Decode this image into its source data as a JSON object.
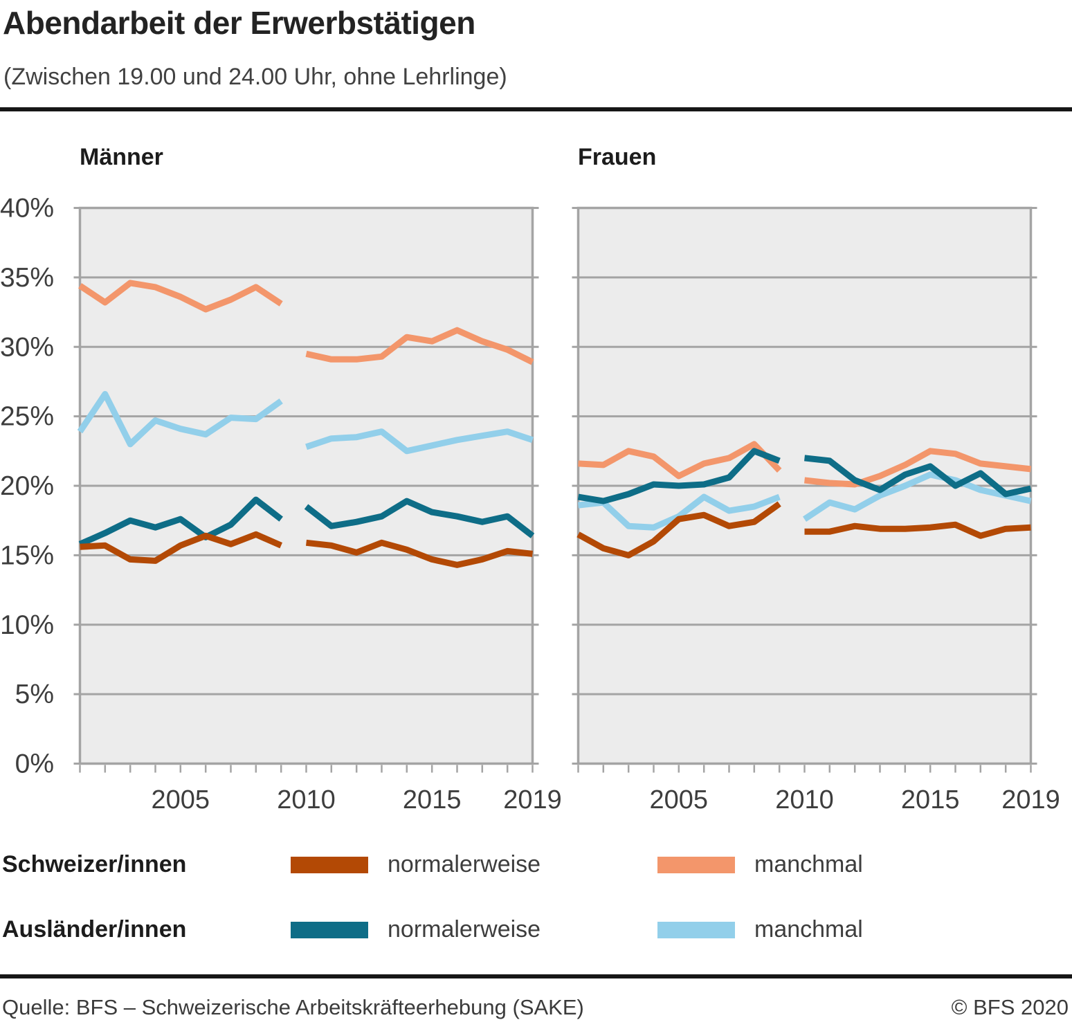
{
  "header": {
    "title": "Abendarbeit der Erwerbstätigen",
    "subtitle": "(Zwischen 19.00 und 24.00 Uhr, ohne Lehrlinge)"
  },
  "footer": {
    "source": "Quelle: BFS – Schweizerische Arbeitskräfteerhebung (SAKE)",
    "copyright": "© BFS 2020"
  },
  "colors": {
    "swiss_usually": "#b34905",
    "swiss_sometimes": "#f3966b",
    "foreign_usually": "#0e6d87",
    "foreign_sometimes": "#92cfea",
    "grid": "#a4a4a4",
    "plot_bg": "#ececec",
    "axis_text": "#3d3d3d"
  },
  "legend": {
    "rows": [
      {
        "group": "Schweizer/innen",
        "items": [
          {
            "label": "normalerweise",
            "color_key": "swiss_usually"
          },
          {
            "label": "manchmal",
            "color_key": "swiss_sometimes"
          }
        ]
      },
      {
        "group": "Ausländer/innen",
        "items": [
          {
            "label": "normalerweise",
            "color_key": "foreign_usually"
          },
          {
            "label": "manchmal",
            "color_key": "foreign_sometimes"
          }
        ]
      }
    ]
  },
  "chart_data": {
    "type": "line",
    "unit": "percent",
    "grid": true,
    "legend_position": "bottom",
    "ylim": [
      0,
      40
    ],
    "ytick_values": [
      0,
      5,
      10,
      15,
      20,
      25,
      30,
      35,
      40
    ],
    "ytick_labels": [
      "0%",
      "5%",
      "10%",
      "15%",
      "20%",
      "25%",
      "30%",
      "35%",
      "40%"
    ],
    "x_start": 2001,
    "x_end": 2019,
    "series_break_note": "data gap between 2009 and 2010",
    "xtick_years": [
      2005,
      2010,
      2015,
      2019
    ],
    "xtick_labels": [
      "2005",
      "2010",
      "2015",
      "2019"
    ],
    "panels": [
      {
        "title": "Männer",
        "series": [
          {
            "group": "Schweizer/innen",
            "label": "manchmal",
            "color_key": "swiss_sometimes",
            "segments": [
              {
                "start_year": 2001,
                "values": [
                  34.4,
                  33.2,
                  34.6,
                  34.3,
                  33.6,
                  32.7,
                  33.4,
                  34.3,
                  33.1
                ]
              },
              {
                "start_year": 2010,
                "values": [
                  29.5,
                  29.1,
                  29.1,
                  29.3,
                  30.7,
                  30.4,
                  31.2,
                  30.4,
                  29.8,
                  28.9
                ]
              }
            ]
          },
          {
            "group": "Ausländer/innen",
            "label": "manchmal",
            "color_key": "foreign_sometimes",
            "segments": [
              {
                "start_year": 2001,
                "values": [
                  23.9,
                  26.6,
                  23.0,
                  24.7,
                  24.1,
                  23.7,
                  24.9,
                  24.8,
                  26.1
                ]
              },
              {
                "start_year": 2010,
                "values": [
                  22.8,
                  23.4,
                  23.5,
                  23.9,
                  22.5,
                  22.9,
                  23.3,
                  23.6,
                  23.9,
                  23.3
                ]
              }
            ]
          },
          {
            "group": "Ausländer/innen",
            "label": "normalerweise",
            "color_key": "foreign_usually",
            "segments": [
              {
                "start_year": 2001,
                "values": [
                  15.8,
                  16.6,
                  17.5,
                  17.0,
                  17.6,
                  16.3,
                  17.2,
                  19.0,
                  17.6
                ]
              },
              {
                "start_year": 2010,
                "values": [
                  18.5,
                  17.1,
                  17.4,
                  17.8,
                  18.9,
                  18.1,
                  17.8,
                  17.4,
                  17.8,
                  16.4
                ]
              }
            ]
          },
          {
            "group": "Schweizer/innen",
            "label": "normalerweise",
            "color_key": "swiss_usually",
            "segments": [
              {
                "start_year": 2001,
                "values": [
                  15.6,
                  15.7,
                  14.7,
                  14.6,
                  15.7,
                  16.4,
                  15.8,
                  16.5,
                  15.7
                ]
              },
              {
                "start_year": 2010,
                "values": [
                  15.9,
                  15.7,
                  15.2,
                  15.9,
                  15.4,
                  14.7,
                  14.3,
                  14.7,
                  15.3,
                  15.1
                ]
              }
            ]
          }
        ]
      },
      {
        "title": "Frauen",
        "series": [
          {
            "group": "Schweizer/innen",
            "label": "manchmal",
            "color_key": "swiss_sometimes",
            "segments": [
              {
                "start_year": 2001,
                "values": [
                  21.6,
                  21.5,
                  22.5,
                  22.1,
                  20.7,
                  21.6,
                  22.0,
                  23.0,
                  21.1
                ]
              },
              {
                "start_year": 2010,
                "values": [
                  20.4,
                  20.2,
                  20.1,
                  20.7,
                  21.5,
                  22.5,
                  22.3,
                  21.6,
                  21.4,
                  21.2
                ]
              }
            ]
          },
          {
            "group": "Ausländer/innen",
            "label": "manchmal",
            "color_key": "foreign_sometimes",
            "segments": [
              {
                "start_year": 2001,
                "values": [
                  18.6,
                  18.8,
                  17.1,
                  17.0,
                  17.8,
                  19.2,
                  18.2,
                  18.5,
                  19.2
                ]
              },
              {
                "start_year": 2010,
                "values": [
                  17.6,
                  18.8,
                  18.3,
                  19.3,
                  20.0,
                  20.8,
                  20.4,
                  19.7,
                  19.3,
                  18.9
                ]
              }
            ]
          },
          {
            "group": "Ausländer/innen",
            "label": "normalerweise",
            "color_key": "foreign_usually",
            "segments": [
              {
                "start_year": 2001,
                "values": [
                  19.2,
                  18.9,
                  19.4,
                  20.1,
                  20.0,
                  20.1,
                  20.6,
                  22.5,
                  21.8
                ]
              },
              {
                "start_year": 2010,
                "values": [
                  22.0,
                  21.8,
                  20.4,
                  19.7,
                  20.8,
                  21.4,
                  20.0,
                  20.9,
                  19.4,
                  19.8
                ]
              }
            ]
          },
          {
            "group": "Schweizer/innen",
            "label": "normalerweise",
            "color_key": "swiss_usually",
            "segments": [
              {
                "start_year": 2001,
                "values": [
                  16.5,
                  15.5,
                  15.0,
                  16.0,
                  17.6,
                  17.9,
                  17.1,
                  17.4,
                  18.7
                ]
              },
              {
                "start_year": 2010,
                "values": [
                  16.7,
                  16.7,
                  17.1,
                  16.9,
                  16.9,
                  17.0,
                  17.2,
                  16.4,
                  16.9,
                  17.0
                ]
              }
            ]
          }
        ]
      }
    ]
  }
}
